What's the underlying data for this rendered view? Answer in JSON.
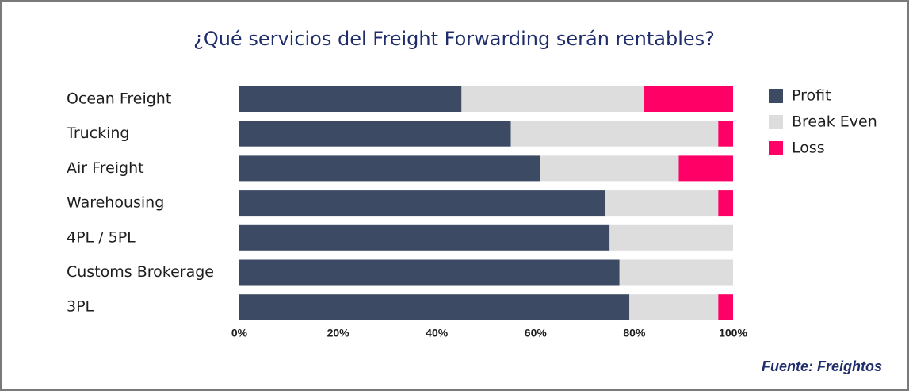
{
  "chart_data": {
    "type": "stacked-bar-horizontal",
    "title": "¿Qué servicios del Freight Forwarding serán rentables?",
    "categories": [
      "Ocean Freight",
      "Trucking",
      "Air Freight",
      "Warehousing",
      "4PL / 5PL",
      "Customs Brokerage",
      "3PL"
    ],
    "series": [
      {
        "name": "Profit",
        "color": "#3d4a63",
        "values": [
          45,
          55,
          61,
          74,
          75,
          77,
          79
        ]
      },
      {
        "name": "Break Even",
        "color": "#dddddd",
        "values": [
          37,
          42,
          28,
          23,
          25,
          23,
          18
        ]
      },
      {
        "name": "Loss",
        "color": "#ff0066",
        "values": [
          18,
          3,
          11,
          3,
          0,
          0,
          3
        ]
      }
    ],
    "xlim": [
      0,
      100
    ],
    "xticks": [
      {
        "value": 0,
        "label": "0%"
      },
      {
        "value": 20,
        "label": "20%"
      },
      {
        "value": 40,
        "label": "40%"
      },
      {
        "value": 60,
        "label": "60%"
      },
      {
        "value": 80,
        "label": "80%"
      },
      {
        "value": 100,
        "label": "100%"
      }
    ],
    "grid": false,
    "legend": "right",
    "source": "Fuente: Freightos"
  }
}
